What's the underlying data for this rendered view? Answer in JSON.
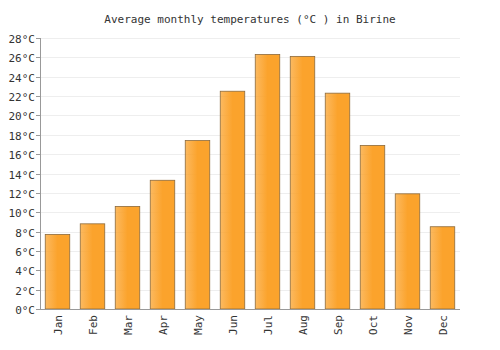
{
  "chart_data": {
    "type": "bar",
    "title": "Average monthly temperatures (°C ) in Birine",
    "categories": [
      "Jan",
      "Feb",
      "Mar",
      "Apr",
      "May",
      "Jun",
      "Jul",
      "Aug",
      "Sep",
      "Oct",
      "Nov",
      "Dec"
    ],
    "values": [
      7.7,
      8.8,
      10.6,
      13.3,
      17.4,
      22.5,
      26.3,
      26.1,
      22.3,
      16.9,
      11.9,
      8.5
    ],
    "color": "#fba32c",
    "ylim": [
      0,
      28
    ],
    "yticks": [
      {
        "value": 0,
        "label": "0°C"
      },
      {
        "value": 2,
        "label": "2°C"
      },
      {
        "value": 4,
        "label": "4°C"
      },
      {
        "value": 6,
        "label": "6°C"
      },
      {
        "value": 8,
        "label": "8°C"
      },
      {
        "value": 10,
        "label": "10°C"
      },
      {
        "value": 12,
        "label": "12°C"
      },
      {
        "value": 14,
        "label": "14°C"
      },
      {
        "value": 16,
        "label": "16°C"
      },
      {
        "value": 18,
        "label": "18°C"
      },
      {
        "value": 20,
        "label": "20°C"
      },
      {
        "value": 22,
        "label": "22°C"
      },
      {
        "value": 24,
        "label": "24°C"
      },
      {
        "value": 26,
        "label": "26°C"
      },
      {
        "value": 28,
        "label": "28°C"
      }
    ],
    "grid": true
  }
}
